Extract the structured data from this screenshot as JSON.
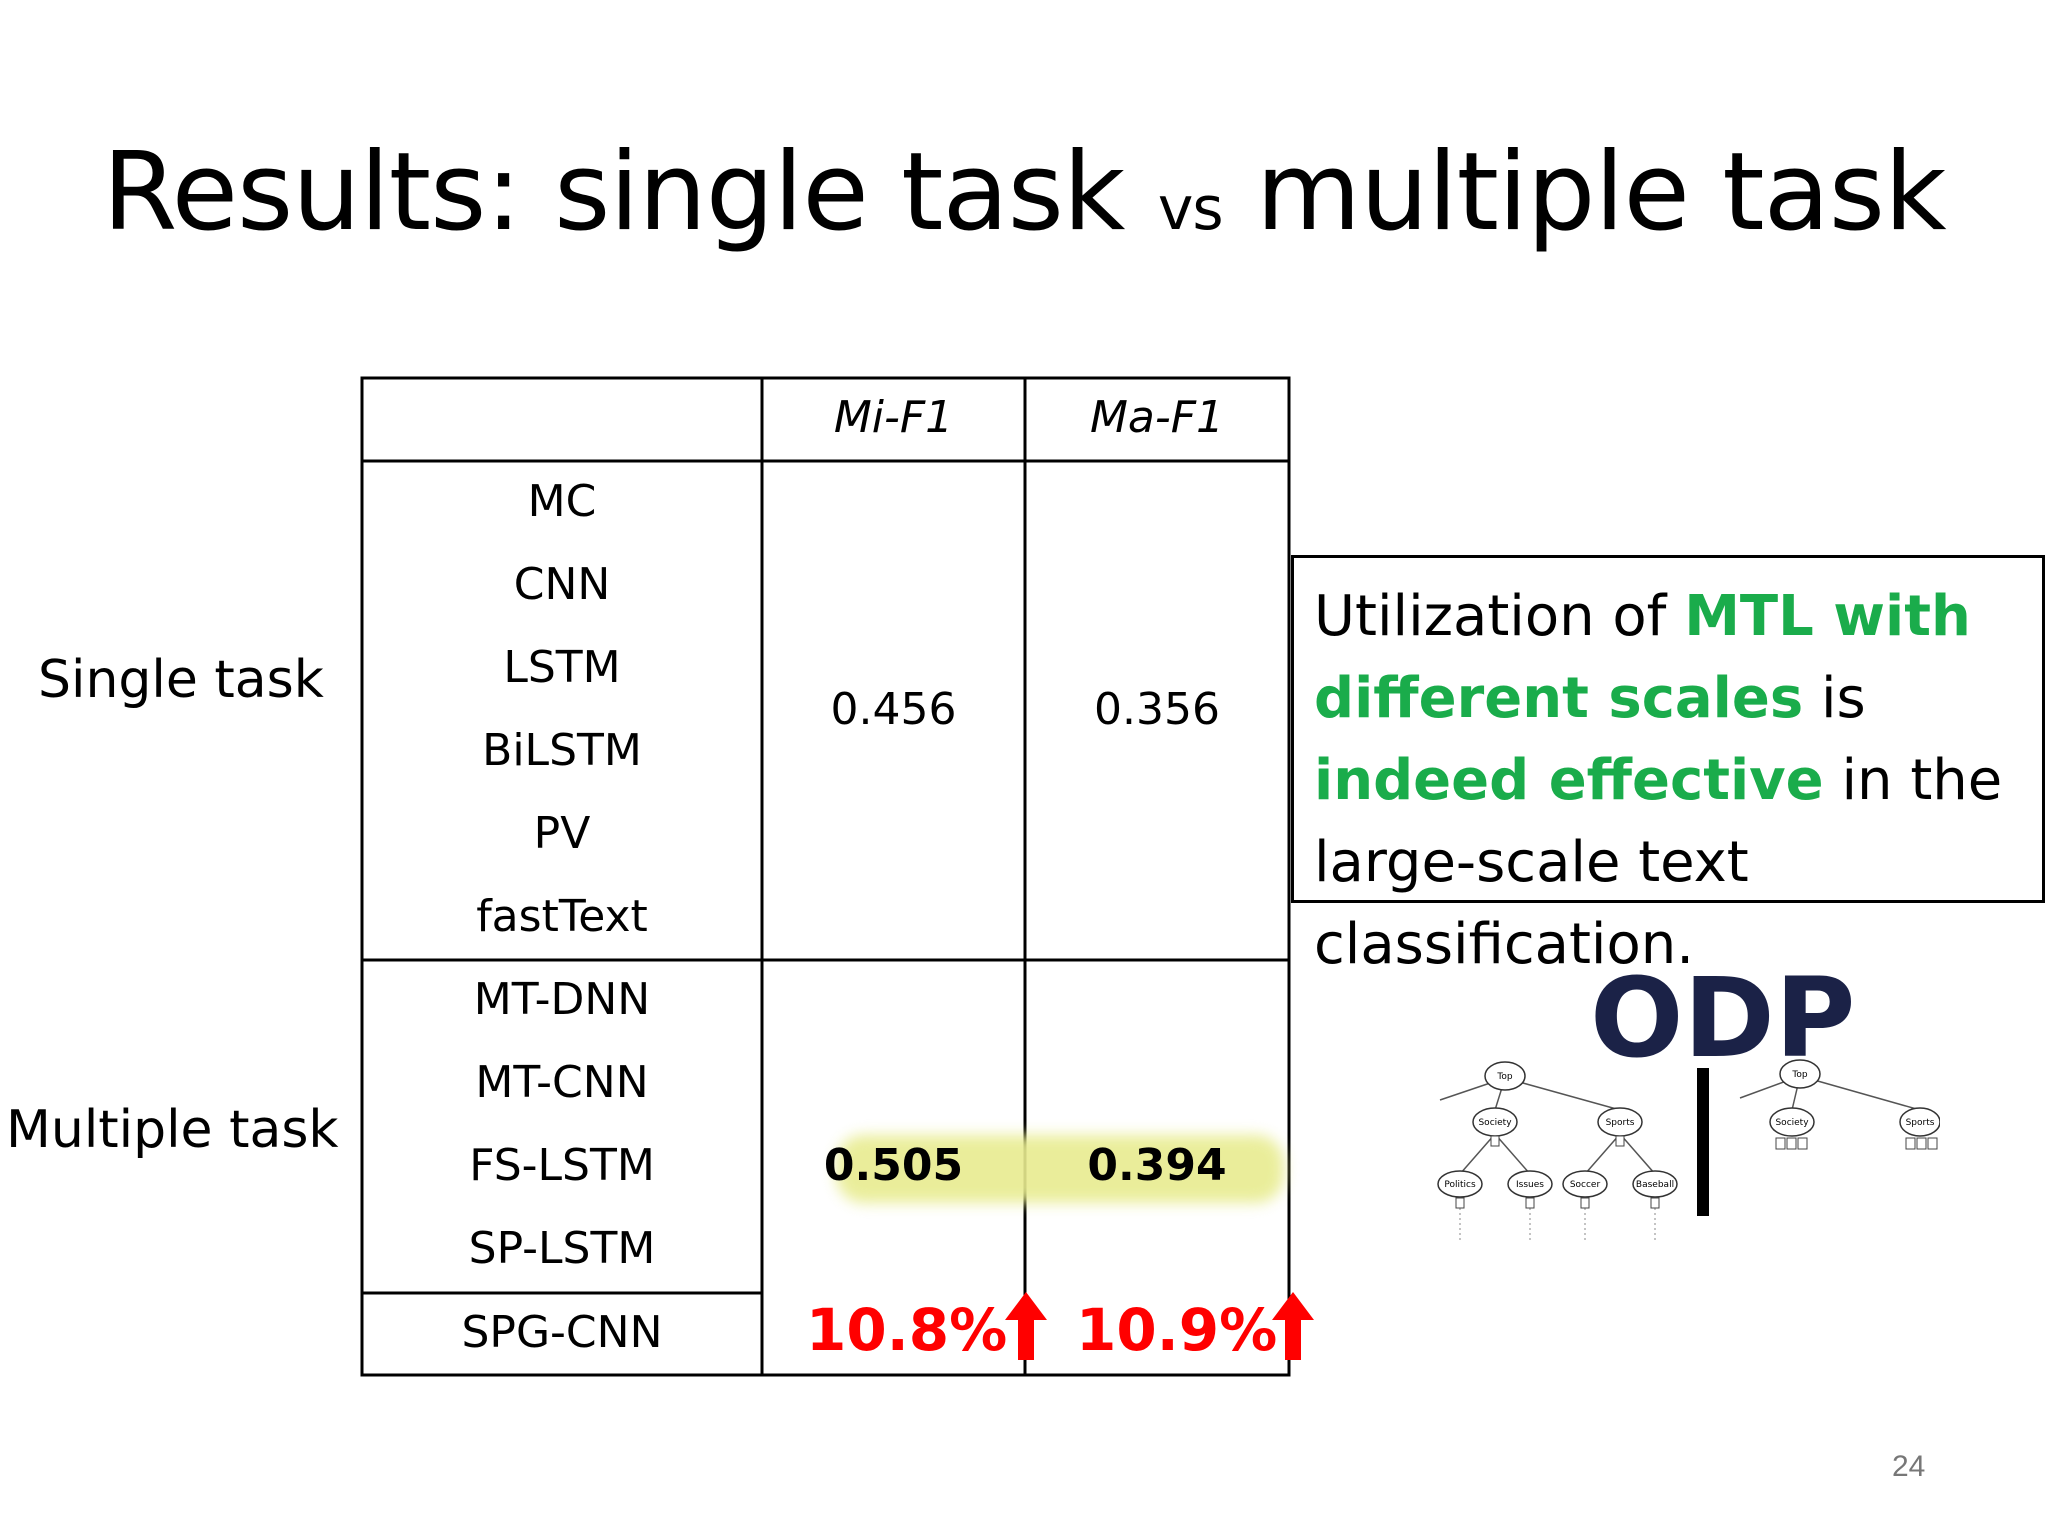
{
  "slide": {
    "title_part1": "Results: single task ",
    "title_vs": "vs",
    "title_part2": " multiple task",
    "page_number": "24"
  },
  "row_groups": {
    "single": "Single task",
    "multiple": "Multiple task"
  },
  "table": {
    "headers": [
      "Mi-F1",
      "Ma-F1"
    ],
    "single_task_models": [
      "MC",
      "CNN",
      "LSTM",
      "BiLSTM",
      "PV",
      "fastText"
    ],
    "single_task_mi_f1": "0.456",
    "single_task_ma_f1": "0.356",
    "multi_task_models": [
      "MT-DNN",
      "MT-CNN",
      "FS-LSTM",
      "SP-LSTM"
    ],
    "multi_task_mi_f1": "0.505",
    "multi_task_ma_f1": "0.394",
    "proposed_model": "SPG-CNN",
    "proposed_mi_gain": "10.8%",
    "proposed_ma_gain": "10.9%"
  },
  "callout": {
    "t1": "Utilization of ",
    "g1": "MTL with different scales",
    "t2": " is ",
    "g2": "indeed effective",
    "t3": " in the large-scale text classification."
  },
  "odp_figure": {
    "logo": "ODP",
    "left_tree": {
      "root": "Top",
      "level1": [
        "Society",
        "Sports"
      ],
      "level2": [
        "Politics",
        "Issues",
        "Soccer",
        "Baseball"
      ]
    },
    "right_tree": {
      "root": "Top",
      "level1": [
        "Society",
        "Sports"
      ]
    }
  },
  "colors": {
    "green": "#1aac4b",
    "red": "#ff0000",
    "highlight": "#e8ec90",
    "odp_dark": "#1b2247",
    "odp_blue": "#2a4a9a"
  }
}
